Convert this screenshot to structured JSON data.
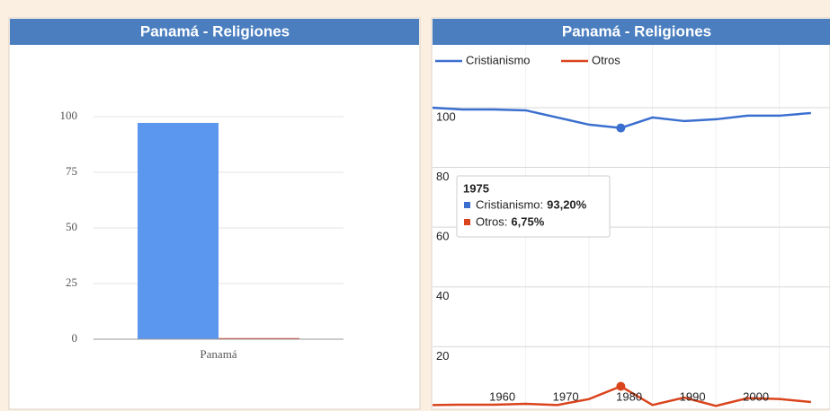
{
  "chart_data": [
    {
      "type": "bar",
      "title": "Panamá - Religiones",
      "categories": [
        "Panamá"
      ],
      "series": [
        {
          "color": "#5b97ee",
          "values": [
            97.2
          ]
        },
        {
          "color": "#d4442a",
          "values": [
            0.5
          ]
        }
      ],
      "ylim": [
        0,
        100
      ],
      "yticks": [
        0,
        25,
        50,
        75,
        100
      ],
      "grid": true
    },
    {
      "type": "line",
      "title": "Panamá - Religiones",
      "x": [
        1945,
        1950,
        1955,
        1960,
        1965,
        1970,
        1975,
        1980,
        1985,
        1990,
        1995,
        2000,
        2005
      ],
      "series": [
        {
          "name": "Cristianismo",
          "color": "#3b6fcf",
          "values": [
            100,
            99.4,
            99.4,
            99.1,
            96.7,
            94.3,
            93.2,
            96.7,
            95.5,
            96.1,
            97.3,
            97.3,
            98.2
          ]
        },
        {
          "name": "Otros",
          "color": "#d9441c",
          "values": [
            0.5,
            0.6,
            0.6,
            0.9,
            0.5,
            2.5,
            6.75,
            0.5,
            3.0,
            0.2,
            2.8,
            2.5,
            1.5
          ]
        }
      ],
      "xlim": [
        1945.3,
        2008
      ],
      "xticks": [
        1960,
        1970,
        1980,
        1990,
        2000
      ],
      "ylim": [
        0,
        121
      ],
      "yticks": [
        20,
        40,
        60,
        80,
        100
      ],
      "grid": true,
      "legend": "top-left",
      "tooltip": {
        "title": "1975",
        "items": [
          {
            "label": "Cristianismo:",
            "value": "93,20%"
          },
          {
            "label": "Otros:",
            "value": "6,75%"
          }
        ]
      }
    }
  ]
}
